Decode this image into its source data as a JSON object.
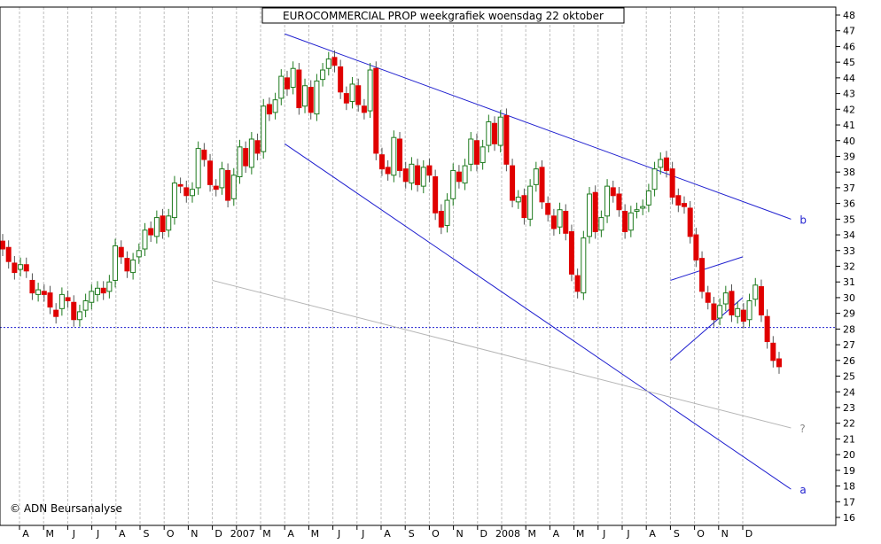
{
  "chart_data": {
    "type": "candlestick",
    "title": "EUROCOMMERCIAL PROP weekgrafiek woensdag 22 oktober",
    "credit": "© ADN Beursanalyse",
    "ylim": [
      16,
      48
    ],
    "y_ticks": [
      16,
      17,
      18,
      19,
      20,
      21,
      22,
      23,
      24,
      25,
      26,
      27,
      28,
      29,
      30,
      31,
      32,
      33,
      34,
      35,
      36,
      37,
      38,
      39,
      40,
      41,
      42,
      43,
      44,
      45,
      46,
      47,
      48
    ],
    "x_labels": [
      "A",
      "M",
      "J",
      "J",
      "A",
      "S",
      "O",
      "N",
      "D",
      "2007",
      "M",
      "A",
      "M",
      "J",
      "J",
      "A",
      "S",
      "O",
      "N",
      "D",
      "2008",
      "M",
      "A",
      "M",
      "J",
      "J",
      "A",
      "S",
      "O",
      "N",
      "D"
    ],
    "grid": true,
    "horizontal_line": 28.1,
    "trendlines": [
      {
        "label": "b",
        "from": [
          "2007-03",
          46.8
        ],
        "to": [
          "2008-12",
          35.0
        ]
      },
      {
        "label": "a",
        "from": [
          "2007-03",
          39.8
        ],
        "to": [
          "2008-12",
          17.8
        ]
      },
      {
        "label": "?",
        "from": [
          "2006-12",
          31.1
        ],
        "to": [
          "2008-12",
          21.7
        ]
      },
      {
        "label": "",
        "from": [
          "2008-07",
          31.1
        ],
        "to": [
          "2008-10",
          32.6
        ]
      },
      {
        "label": "",
        "from": [
          "2008-07",
          26.0
        ],
        "to": [
          "2008-10",
          30.0
        ]
      }
    ],
    "candles_weekly": [
      [
        33.6,
        33.1
      ],
      [
        33.2,
        32.3
      ],
      [
        32.2,
        31.6
      ],
      [
        31.8,
        32.1
      ],
      [
        32.1,
        31.7
      ],
      [
        31.1,
        30.3
      ],
      [
        30.2,
        30.5
      ],
      [
        30.4,
        30.2
      ],
      [
        30.3,
        29.4
      ],
      [
        29.2,
        28.8
      ],
      [
        29.3,
        30.2
      ],
      [
        30.0,
        29.8
      ],
      [
        29.7,
        28.6
      ],
      [
        28.6,
        29.1
      ],
      [
        29.2,
        29.8
      ],
      [
        29.7,
        30.4
      ],
      [
        30.2,
        30.6
      ],
      [
        30.6,
        30.3
      ],
      [
        30.4,
        31.0
      ],
      [
        31.1,
        33.3
      ],
      [
        33.2,
        32.6
      ],
      [
        32.5,
        31.7
      ],
      [
        31.6,
        32.4
      ],
      [
        32.6,
        33.0
      ],
      [
        33.1,
        34.3
      ],
      [
        34.4,
        34.0
      ],
      [
        33.9,
        35.1
      ],
      [
        35.2,
        34.2
      ],
      [
        34.3,
        35.2
      ],
      [
        35.1,
        37.3
      ],
      [
        37.2,
        37.1
      ],
      [
        37.0,
        36.5
      ],
      [
        36.5,
        36.9
      ],
      [
        37.0,
        39.5
      ],
      [
        39.4,
        38.8
      ],
      [
        38.7,
        37.2
      ],
      [
        37.1,
        36.9
      ],
      [
        37.0,
        38.2
      ],
      [
        38.1,
        36.2
      ],
      [
        36.3,
        37.8
      ],
      [
        37.7,
        39.6
      ],
      [
        39.5,
        38.4
      ],
      [
        38.3,
        40.1
      ],
      [
        40.0,
        39.2
      ],
      [
        39.3,
        42.2
      ],
      [
        42.3,
        41.7
      ],
      [
        41.8,
        42.6
      ],
      [
        42.7,
        44.1
      ],
      [
        44.0,
        43.3
      ],
      [
        43.4,
        44.6
      ],
      [
        44.5,
        42.1
      ],
      [
        42.2,
        43.5
      ],
      [
        43.4,
        41.8
      ],
      [
        41.7,
        43.8
      ],
      [
        43.9,
        44.5
      ],
      [
        44.6,
        45.2
      ],
      [
        45.3,
        44.8
      ],
      [
        44.7,
        43.1
      ],
      [
        43.0,
        42.4
      ],
      [
        42.5,
        43.6
      ],
      [
        43.5,
        42.3
      ],
      [
        42.2,
        41.8
      ],
      [
        41.9,
        44.5
      ],
      [
        44.6,
        39.2
      ],
      [
        39.1,
        38.2
      ],
      [
        38.3,
        37.9
      ],
      [
        37.8,
        40.2
      ],
      [
        40.1,
        38.1
      ],
      [
        38.2,
        37.4
      ],
      [
        37.3,
        38.5
      ],
      [
        38.4,
        37.2
      ],
      [
        37.1,
        38.3
      ],
      [
        38.4,
        37.8
      ],
      [
        37.7,
        35.4
      ],
      [
        35.5,
        34.5
      ],
      [
        34.6,
        36.2
      ],
      [
        36.3,
        38.1
      ],
      [
        38.0,
        37.4
      ],
      [
        37.3,
        38.4
      ],
      [
        38.5,
        40.1
      ],
      [
        40.0,
        38.5
      ],
      [
        38.6,
        39.6
      ],
      [
        39.7,
        41.2
      ],
      [
        41.1,
        39.8
      ],
      [
        39.7,
        41.5
      ],
      [
        41.6,
        38.5
      ],
      [
        38.4,
        36.2
      ],
      [
        36.1,
        36.4
      ],
      [
        36.5,
        35.1
      ],
      [
        35.0,
        37.1
      ],
      [
        37.2,
        38.2
      ],
      [
        38.3,
        36.1
      ],
      [
        36.0,
        35.3
      ],
      [
        35.2,
        34.4
      ],
      [
        34.5,
        35.6
      ],
      [
        35.5,
        34.1
      ],
      [
        34.2,
        31.5
      ],
      [
        31.4,
        30.4
      ],
      [
        30.3,
        33.8
      ],
      [
        33.9,
        36.6
      ],
      [
        36.7,
        34.2
      ],
      [
        34.3,
        35.1
      ],
      [
        35.2,
        37.1
      ],
      [
        37.0,
        36.5
      ],
      [
        36.6,
        35.6
      ],
      [
        35.5,
        34.2
      ],
      [
        34.3,
        35.4
      ],
      [
        35.5,
        35.6
      ],
      [
        35.7,
        35.8
      ],
      [
        35.9,
        36.8
      ],
      [
        36.9,
        38.2
      ],
      [
        38.3,
        38.8
      ],
      [
        38.9,
        38.1
      ],
      [
        38.2,
        36.4
      ],
      [
        36.5,
        35.9
      ],
      [
        36.0,
        35.8
      ],
      [
        35.7,
        33.9
      ],
      [
        34.0,
        32.4
      ],
      [
        32.5,
        30.4
      ],
      [
        30.3,
        29.7
      ],
      [
        29.6,
        28.6
      ],
      [
        28.7,
        29.5
      ],
      [
        29.6,
        30.3
      ],
      [
        30.4,
        28.9
      ],
      [
        28.8,
        29.3
      ],
      [
        29.2,
        28.5
      ],
      [
        28.6,
        29.8
      ],
      [
        29.9,
        30.8
      ],
      [
        30.7,
        28.9
      ],
      [
        28.8,
        27.2
      ],
      [
        27.1,
        26.0
      ],
      [
        26.1,
        25.6
      ]
    ]
  }
}
